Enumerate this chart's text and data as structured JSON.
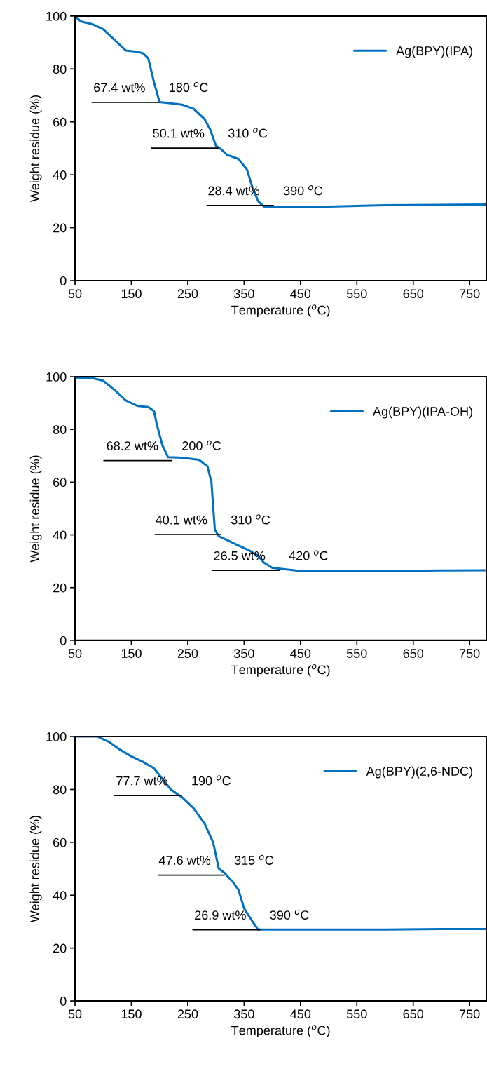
{
  "chart_data": [
    {
      "type": "line",
      "xlabel": "Temperature ($^{o}$C)",
      "ylabel": "Weight residue (%)",
      "xlim": [
        50,
        780
      ],
      "ylim": [
        0,
        100
      ],
      "xticks": [
        50,
        150,
        250,
        350,
        450,
        550,
        650,
        750
      ],
      "yticks": [
        0,
        20,
        40,
        60,
        80,
        100
      ],
      "grid": false,
      "legend": "top right",
      "marker": "none",
      "line_style": "solid",
      "series": [
        {
          "name": "Ag(BPY)(IPA)",
          "color": "#0070c0",
          "x": [
            50,
            60,
            80,
            100,
            120,
            140,
            160,
            170,
            180,
            190,
            200,
            220,
            240,
            260,
            280,
            290,
            300,
            310,
            320,
            340,
            355,
            365,
            375,
            385,
            400,
            500,
            600,
            780
          ],
          "values": [
            100,
            98,
            97,
            95,
            91,
            87,
            86.5,
            86,
            84,
            75,
            67.5,
            67,
            66.5,
            65,
            61,
            57,
            51,
            49.5,
            47.5,
            46,
            42,
            35,
            30,
            28,
            28,
            28,
            28.5,
            28.8
          ]
        },
        {
          "color": "#000000",
          "x": [
            80,
            199
          ],
          "values": [
            67.4,
            67.4
          ]
        },
        {
          "color": "#000000",
          "x": [
            186,
            304
          ],
          "values": [
            50.1,
            50.1
          ]
        },
        {
          "color": "#000000",
          "x": [
            284,
            402
          ],
          "values": [
            28.4,
            28.4
          ]
        }
      ],
      "annotations": [
        {
          "text": "67.4 wt%",
          "x": 199,
          "y": 67.4
        },
        {
          "text": "180 $^{o}$C",
          "x": 199,
          "y": 67.4
        },
        {
          "text": "50.1 wt%",
          "x": 304,
          "y": 50.1
        },
        {
          "text": "310 $^{o}$C",
          "x": 304,
          "y": 50.1
        },
        {
          "text": "28.4 wt%",
          "x": 402,
          "y": 28.4
        },
        {
          "text": "390 $^{o}$C",
          "x": 402,
          "y": 28.4
        }
      ]
    },
    {
      "type": "line",
      "xlabel": "Temperature ($^{o}$C)",
      "ylabel": "Weight residue (%)",
      "xlim": [
        50,
        780
      ],
      "ylim": [
        0,
        100
      ],
      "xticks": [
        50,
        150,
        250,
        350,
        450,
        550,
        650,
        750
      ],
      "yticks": [
        0,
        20,
        40,
        60,
        80,
        100
      ],
      "grid": false,
      "legend": "top right",
      "marker": "none",
      "line_style": "solid",
      "series": [
        {
          "name": "Ag(BPY)(IPA-OH)",
          "color": "#0070c0",
          "x": [
            50,
            80,
            100,
            120,
            140,
            160,
            180,
            190,
            195,
            205,
            215,
            240,
            270,
            285,
            292,
            296,
            298,
            305,
            330,
            360,
            375,
            385,
            400,
            450,
            550,
            700,
            780
          ],
          "values": [
            99.7,
            99.5,
            98.5,
            95,
            91,
            89,
            88.5,
            87,
            82,
            74,
            69.5,
            69.3,
            68.5,
            66,
            60,
            48,
            42,
            39.5,
            37,
            34,
            32,
            29.5,
            27.5,
            26.3,
            26.2,
            26.5,
            26.6
          ]
        },
        {
          "color": "#000000",
          "x": [
            101,
            222
          ],
          "values": [
            68.2,
            68.2
          ]
        },
        {
          "color": "#000000",
          "x": [
            192,
            309
          ],
          "values": [
            40.1,
            40.1
          ]
        },
        {
          "color": "#000000",
          "x": [
            293,
            412
          ],
          "values": [
            26.5,
            26.5
          ]
        }
      ],
      "annotations": [
        {
          "text": "68.2 wt%",
          "x": 222,
          "y": 68.2
        },
        {
          "text": "200 $^{o}$C",
          "x": 222,
          "y": 68.2
        },
        {
          "text": "40.1 wt%",
          "x": 309,
          "y": 40.1
        },
        {
          "text": "310 $^{o}$C",
          "x": 309,
          "y": 40.1
        },
        {
          "text": "26.5 wt%",
          "x": 412,
          "y": 26.5
        },
        {
          "text": "420 $^{o}$C",
          "x": 412,
          "y": 26.5
        }
      ]
    },
    {
      "type": "line",
      "xlabel": "Temperature ($^{o}$C)",
      "ylabel": "Weight residue (%)",
      "xlim": [
        50,
        780
      ],
      "ylim": [
        0,
        100
      ],
      "xticks": [
        50,
        150,
        250,
        350,
        450,
        550,
        650,
        750
      ],
      "yticks": [
        0,
        20,
        40,
        60,
        80,
        100
      ],
      "grid": false,
      "legend": "top right",
      "marker": "none",
      "line_style": "solid",
      "series": [
        {
          "name": "Ag(BPY)(2,6-NDC)",
          "color": "#0070c0",
          "x": [
            50,
            90,
            110,
            130,
            150,
            170,
            190,
            205,
            220,
            240,
            260,
            280,
            295,
            305,
            315,
            330,
            340,
            350,
            365,
            375,
            450,
            600,
            700,
            780
          ],
          "values": [
            100,
            100,
            98,
            95,
            92.5,
            90.5,
            88,
            84,
            80,
            77,
            73,
            67,
            60,
            50,
            48.5,
            45,
            42,
            35,
            30,
            27,
            27,
            27,
            27.2,
            27.2
          ]
        },
        {
          "color": "#000000",
          "x": [
            120,
            239
          ],
          "values": [
            77.7,
            77.7
          ]
        },
        {
          "color": "#000000",
          "x": [
            197,
            315
          ],
          "values": [
            47.6,
            47.6
          ]
        },
        {
          "color": "#000000",
          "x": [
            259,
            378
          ],
          "values": [
            26.9,
            26.9
          ]
        }
      ],
      "annotations": [
        {
          "text": "77.7 wt%",
          "x": 239,
          "y": 77.7
        },
        {
          "text": "190 $^{o}$C",
          "x": 239,
          "y": 77.7
        },
        {
          "text": "47.6 wt%",
          "x": 315,
          "y": 47.6
        },
        {
          "text": "315 $^{o}$C",
          "x": 315,
          "y": 47.6
        },
        {
          "text": "26.9 wt%",
          "x": 378,
          "y": 26.9
        },
        {
          "text": "390 $^{o}$C",
          "x": 378,
          "y": 26.9
        }
      ]
    }
  ]
}
